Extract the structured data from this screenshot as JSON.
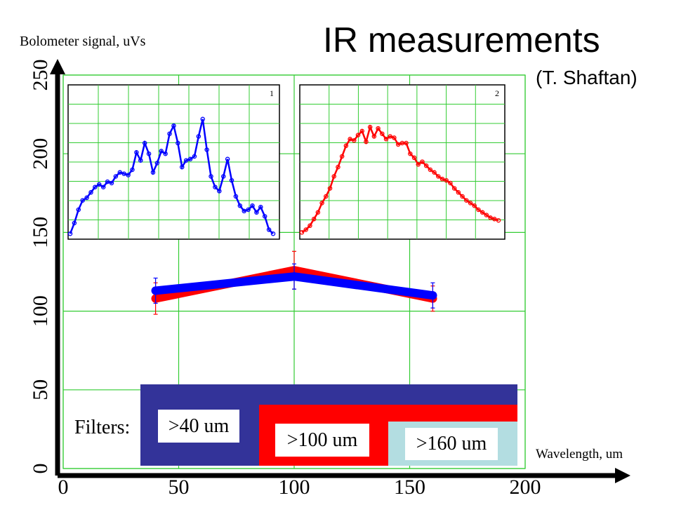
{
  "title": "IR measurements",
  "subtitle": "(T. Shaftan)",
  "chart_data": {
    "type": "line",
    "ylabel": "Bolometer signal, uVs",
    "xlabel": "Wavelength, um",
    "xlim": [
      0,
      200
    ],
    "ylim": [
      0,
      250
    ],
    "xticks": [
      "0",
      "50",
      "100",
      "150",
      "200"
    ],
    "yticks": [
      "0",
      "50",
      "100",
      "150",
      "200",
      "250"
    ],
    "grid": true,
    "series": [
      {
        "color": "#ff0000",
        "x": [
          40,
          100,
          160
        ],
        "y": [
          108,
          126,
          108
        ],
        "err": [
          10,
          12,
          8
        ]
      },
      {
        "color": "#0000ff",
        "x": [
          40,
          100,
          160
        ],
        "y": [
          113,
          122,
          110
        ],
        "err": [
          8,
          8,
          8
        ]
      }
    ],
    "insets": [
      {
        "label": "1",
        "color": "#0000ff",
        "y": [
          0.02,
          0.1,
          0.2,
          0.27,
          0.29,
          0.33,
          0.37,
          0.39,
          0.37,
          0.41,
          0.4,
          0.45,
          0.48,
          0.47,
          0.46,
          0.5,
          0.63,
          0.57,
          0.7,
          0.62,
          0.48,
          0.55,
          0.64,
          0.62,
          0.77,
          0.83,
          0.7,
          0.52,
          0.57,
          0.58,
          0.6,
          0.75,
          0.88,
          0.65,
          0.45,
          0.37,
          0.34,
          0.45,
          0.58,
          0.42,
          0.3,
          0.23,
          0.19,
          0.2,
          0.23,
          0.18,
          0.22,
          0.15,
          0.05,
          0.02
        ]
      },
      {
        "label": "2",
        "color": "#ff0000",
        "y": [
          0.03,
          0.05,
          0.08,
          0.13,
          0.18,
          0.25,
          0.3,
          0.36,
          0.45,
          0.52,
          0.6,
          0.68,
          0.73,
          0.72,
          0.76,
          0.79,
          0.71,
          0.82,
          0.75,
          0.81,
          0.77,
          0.73,
          0.75,
          0.74,
          0.69,
          0.7,
          0.7,
          0.62,
          0.59,
          0.54,
          0.56,
          0.53,
          0.5,
          0.48,
          0.45,
          0.43,
          0.42,
          0.4,
          0.36,
          0.33,
          0.3,
          0.27,
          0.25,
          0.23,
          0.2,
          0.18,
          0.16,
          0.14,
          0.13,
          0.12
        ]
      }
    ]
  },
  "filters": {
    "label": "Filters:",
    "items": [
      {
        "text": ">40 um",
        "color": "#333399"
      },
      {
        "text": ">100 um",
        "color": "#ff0000"
      },
      {
        "text": ">160 um",
        "color": "#b3dde1"
      }
    ]
  }
}
